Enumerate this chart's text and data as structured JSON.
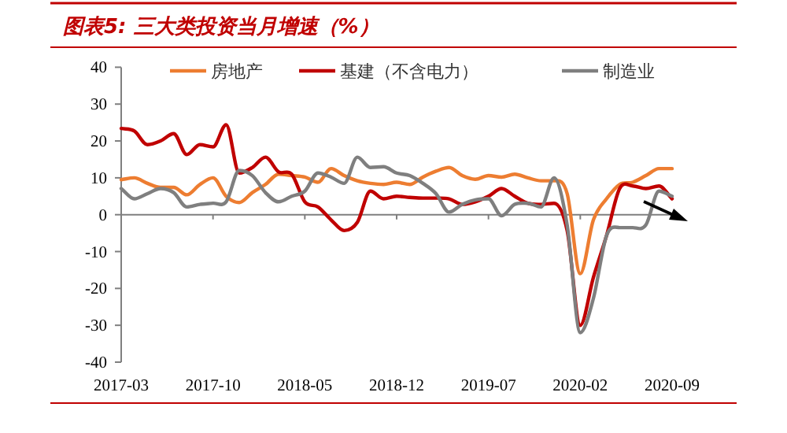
{
  "chart_data": {
    "type": "line",
    "title": "图表5: 三大类投资当月增速（%）",
    "x": [
      "2017-03",
      "2017-04",
      "2017-05",
      "2017-06",
      "2017-07",
      "2017-08",
      "2017-09",
      "2017-10",
      "2017-11",
      "2017-12",
      "2018-01",
      "2018-02",
      "2018-03",
      "2018-04",
      "2018-05",
      "2018-06",
      "2018-07",
      "2018-08",
      "2018-09",
      "2018-10",
      "2018-11",
      "2018-12",
      "2019-01",
      "2019-02",
      "2019-03",
      "2019-04",
      "2019-05",
      "2019-06",
      "2019-07",
      "2019-08",
      "2019-09",
      "2019-10",
      "2019-11",
      "2019-12",
      "2020-01",
      "2020-02",
      "2020-03",
      "2020-04",
      "2020-05",
      "2020-06",
      "2020-07",
      "2020-08",
      "2020-09"
    ],
    "series": [
      {
        "name": "房地产",
        "color": "#ed7d31",
        "values": [
          9.5,
          10,
          8.5,
          7.4,
          7.4,
          5.4,
          8.2,
          10,
          5,
          3.3,
          6,
          8.2,
          11,
          10.6,
          10.2,
          8.8,
          12.5,
          10.6,
          9.2,
          8.5,
          8.2,
          8.8,
          8.2,
          10.2,
          11.8,
          12.8,
          10.6,
          9.6,
          10.6,
          10.2,
          11,
          10,
          9.2,
          9.2,
          5.7,
          -16,
          -1.4,
          4.3,
          8.2,
          8.8,
          10.6,
          12.5,
          12.5
        ]
      },
      {
        "name": "基建（不含电力）",
        "color": "#c00000",
        "values": [
          23.4,
          22.7,
          19,
          20,
          22,
          16.3,
          19,
          18.4,
          24.4,
          11.3,
          12.8,
          15.6,
          11.6,
          11,
          3.5,
          2.1,
          -1.4,
          -4.3,
          -2.1,
          6.4,
          4.3,
          5,
          4.7,
          4.5,
          4.5,
          4.3,
          2.8,
          3.5,
          5,
          7.1,
          5,
          3.1,
          2.8,
          3.1,
          -4.3,
          -30,
          -17,
          -5.7,
          7.1,
          7.8,
          7.1,
          7.8,
          4.3
        ]
      },
      {
        "name": "制造业",
        "color": "#7f7f7f",
        "values": [
          7.1,
          4.3,
          5.7,
          7.1,
          6,
          2.1,
          2.8,
          3.1,
          3.5,
          12,
          10.6,
          6,
          3.5,
          5,
          6.4,
          11.3,
          10.2,
          8.5,
          15.6,
          12.8,
          13,
          11.3,
          10.6,
          8.5,
          5.7,
          0.7,
          2.8,
          4,
          4.3,
          -0.3,
          2.8,
          3.1,
          2.1,
          10,
          -2.8,
          -32,
          -22.7,
          -5.7,
          -3.5,
          -3.5,
          -2.8,
          6.4,
          5
        ]
      }
    ],
    "xlim": [
      "2017-03",
      "2020-09"
    ],
    "xticks": [
      "2017-03",
      "2017-10",
      "2018-05",
      "2018-12",
      "2019-07",
      "2020-02",
      "2020-09"
    ],
    "ylim": [
      -40,
      40
    ],
    "yticks": [
      -40,
      -30,
      -20,
      -10,
      0,
      10,
      20,
      30,
      40
    ],
    "legend": "top",
    "marker": "none",
    "line_style": "solid"
  }
}
